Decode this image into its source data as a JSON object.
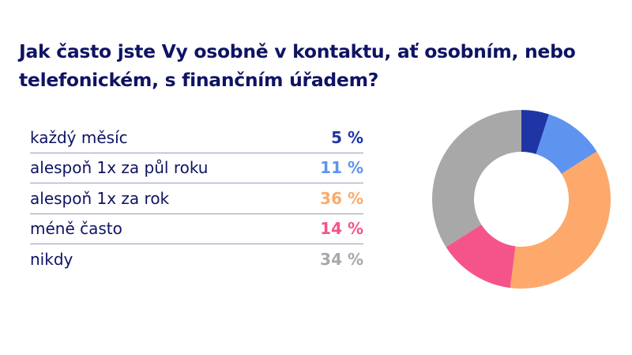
{
  "title": "Jak často jste Vy osobně v kontaktu, ať osobním, nebo telefonickém, s finančním úřadem?",
  "rows": [
    {
      "label": "každý měsíc",
      "value": "5 %",
      "color": "#1f35a5"
    },
    {
      "label": "alespoň 1x za půl roku",
      "value": "11 %",
      "color": "#5f93f0"
    },
    {
      "label": "alespoň 1x za rok",
      "value": "36 %",
      "color": "#fca96b"
    },
    {
      "label": "méně často",
      "value": "14 %",
      "color": "#f5548a"
    },
    {
      "label": "nikdy",
      "value": "34 %",
      "color": "#a8a8a8"
    }
  ],
  "chart_data": {
    "type": "pie",
    "subtype": "donut",
    "title": "Jak často jste Vy osobně v kontaktu, ať osobním, nebo telefonickém, s finančním úřadem?",
    "categories": [
      "každý měsíc",
      "alespoň 1x za půl roku",
      "alespoň 1x za rok",
      "méně často",
      "nikdy"
    ],
    "values": [
      5,
      11,
      36,
      14,
      34
    ],
    "unit": "%",
    "colors": [
      "#1f35a5",
      "#5f93f0",
      "#fca96b",
      "#f5548a",
      "#a8a8a8"
    ],
    "start_angle": "12 o'clock, clockwise",
    "legend_position": "left (table)"
  }
}
